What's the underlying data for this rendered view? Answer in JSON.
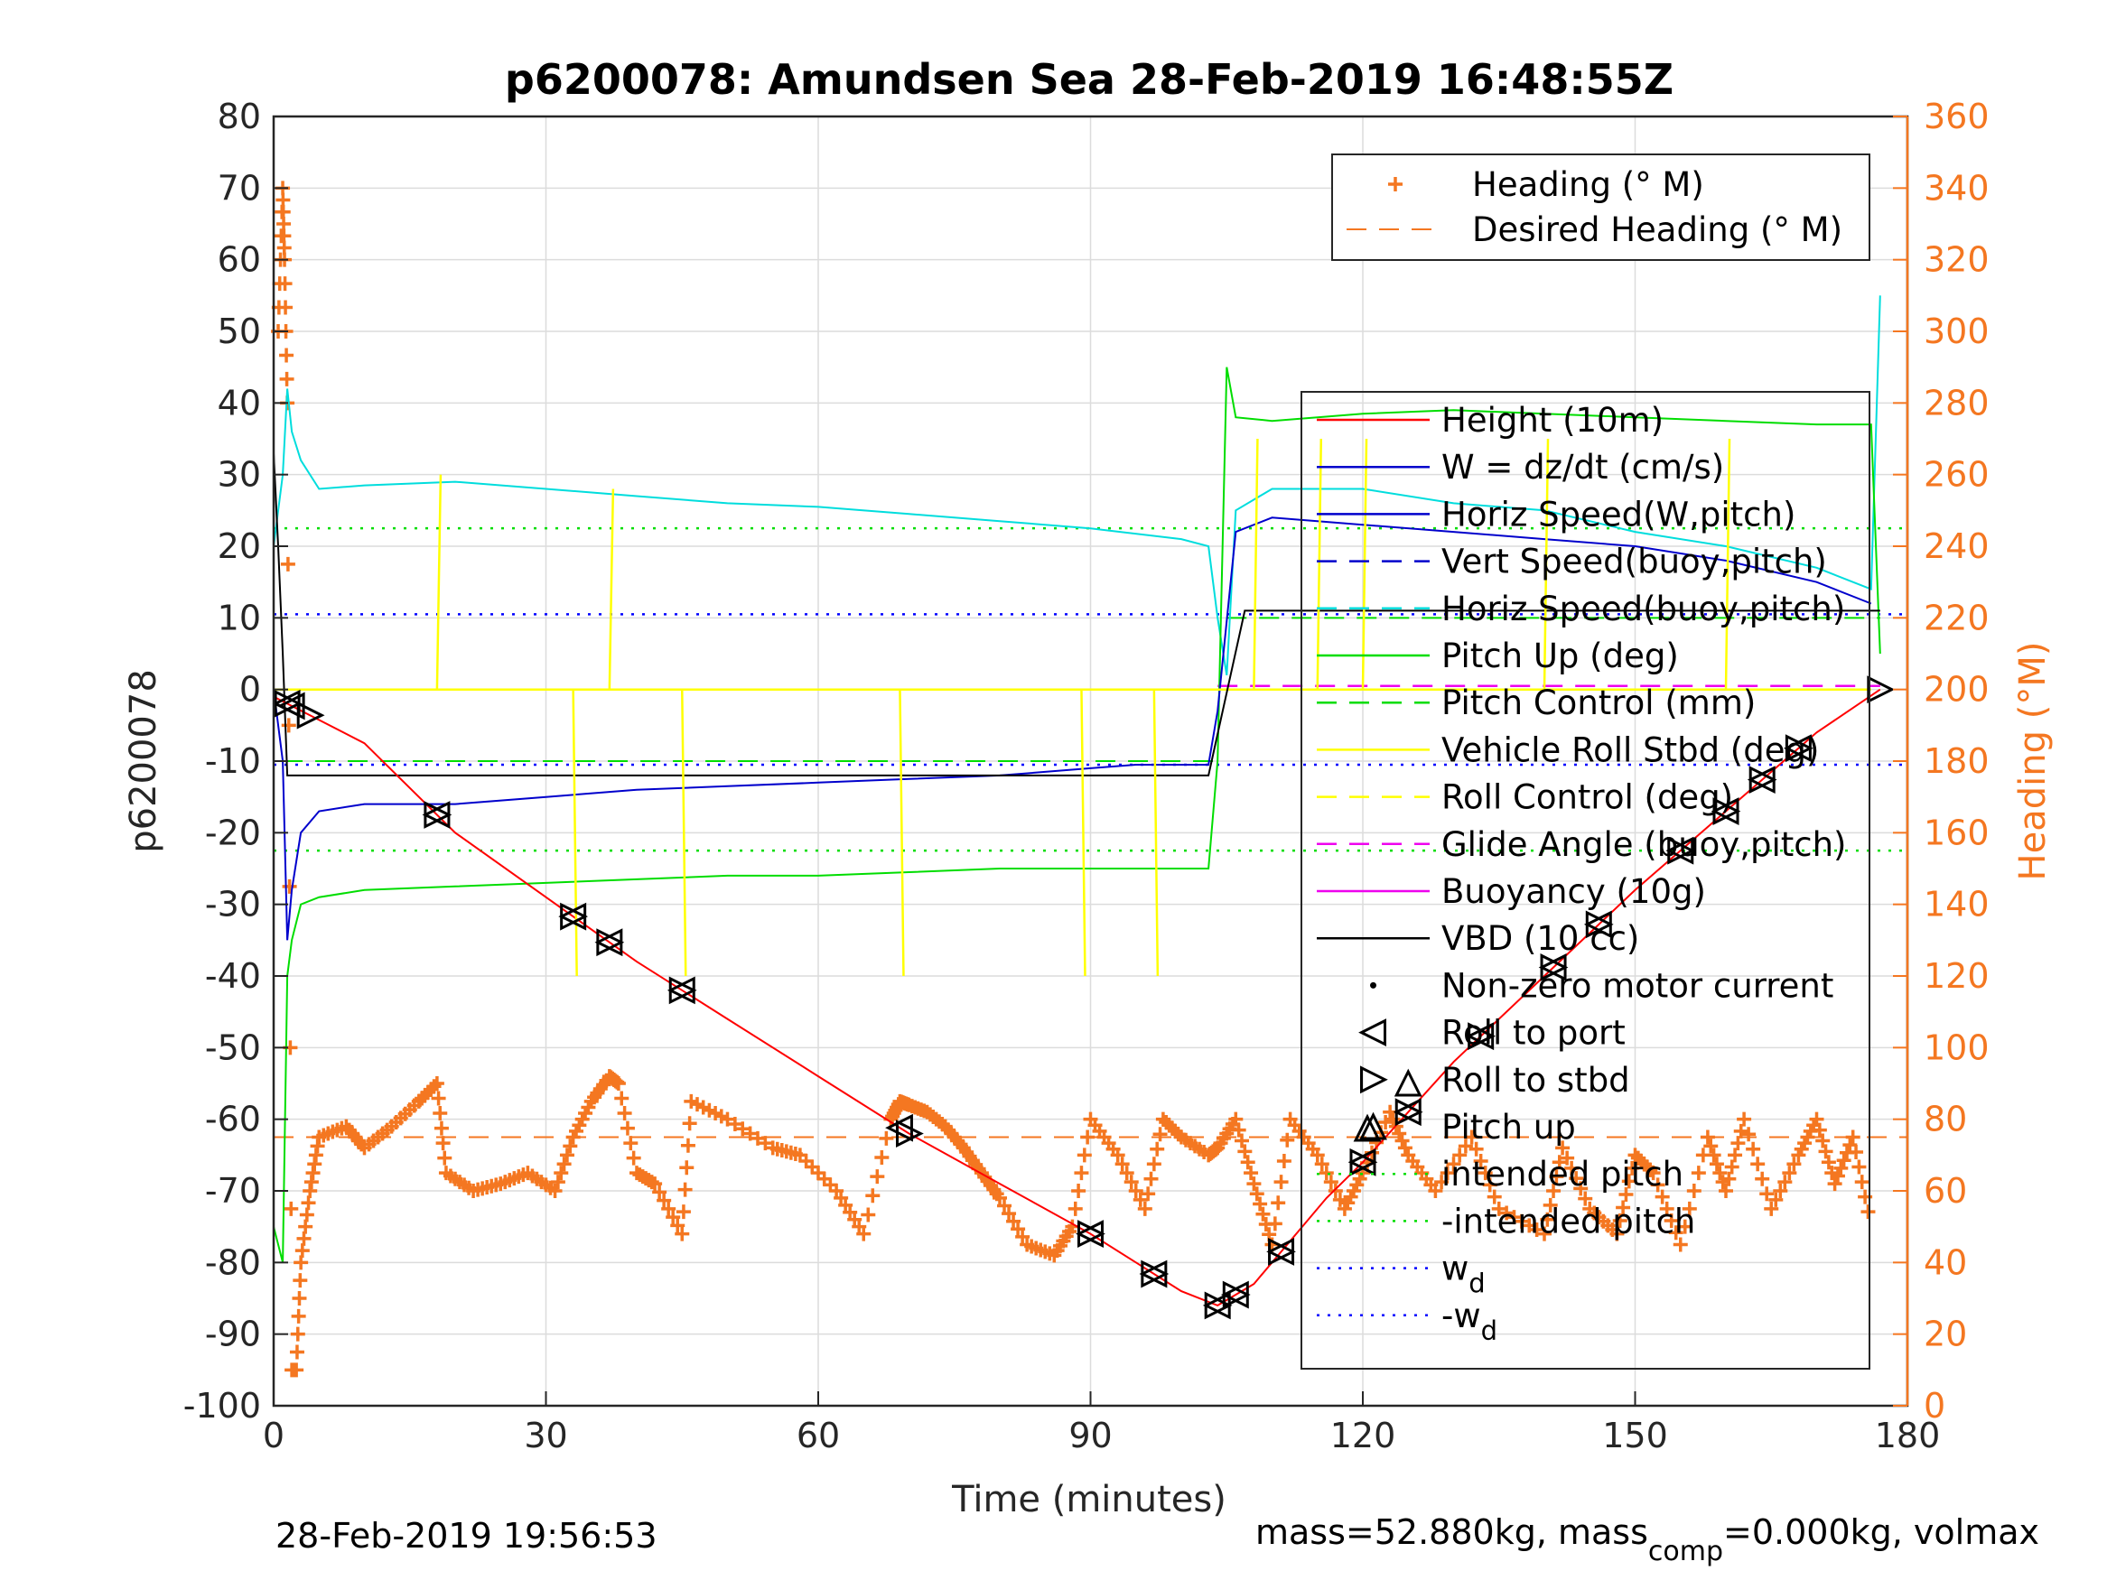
{
  "chart_data": {
    "type": "line",
    "title": "p6200078: Amundsen Sea 28-Feb-2019 16:48:55Z",
    "xlabel": "Time (minutes)",
    "ylabel": "p6200078",
    "ylabel_right": "Heading (°M)",
    "xlim": [
      0,
      180
    ],
    "ylim": [
      -100,
      80
    ],
    "ylim_right": [
      0,
      360
    ],
    "xticks": [
      "0",
      "30",
      "60",
      "90",
      "120",
      "150",
      "180"
    ],
    "yticks": [
      "80",
      "70",
      "60",
      "50",
      "40",
      "30",
      "20",
      "10",
      "0",
      "-10",
      "-20",
      "-30",
      "-40",
      "-50",
      "-60",
      "-70",
      "-80",
      "-90",
      "-100"
    ],
    "yticks_right": [
      "360",
      "340",
      "320",
      "300",
      "280",
      "260",
      "240",
      "220",
      "200",
      "180",
      "160",
      "140",
      "120",
      "100",
      "80",
      "60",
      "40",
      "20",
      "0"
    ],
    "grid": true,
    "legend_placement": "top-right",
    "colors": {
      "heading": "#F47721",
      "height": "#FF0000",
      "w": "#0000CC",
      "horiz_w": "#00DDDD",
      "pitch": "#00DD00",
      "roll": "#FFFF00",
      "glide": "#EE00EE",
      "vbd": "#000000",
      "wd": "#0000FF"
    },
    "heading_legend": [
      "Heading (° M)",
      "Desired Heading (° M)"
    ],
    "main_legend": [
      "Height (10m)",
      "W = dz/dt (cm/s)",
      "Horiz Speed(W,pitch)",
      "Vert Speed(buoy,pitch)",
      "Horiz Speed(buoy,pitch)",
      "Pitch Up (deg)",
      "Pitch Control (mm)",
      "Vehicle Roll Stbd (deg)",
      "Roll Control (deg)",
      "Glide Angle (buoy,pitch)",
      "Buoyancy (10g)",
      "VBD (10 cc)",
      "Non-zero motor current",
      "Roll to port",
      "Roll to stbd",
      "Pitch up",
      "intended pitch",
      "-intended pitch",
      "w",
      "-w"
    ],
    "legend_subscript": "d",
    "series": [
      {
        "name": "Height (10m)",
        "x": [
          0,
          10,
          20,
          30,
          40,
          50,
          60,
          70,
          80,
          90,
          95,
          100,
          104,
          108,
          112,
          116,
          120,
          125,
          130,
          140,
          150,
          160,
          170,
          177
        ],
        "y": [
          -1,
          -7.5,
          -20,
          -29,
          -38,
          -46,
          -54,
          -62,
          -69,
          -76,
          -80,
          -84,
          -86,
          -83,
          -77,
          -71,
          -66,
          -59,
          -52,
          -40,
          -28,
          -17,
          -6,
          0
        ]
      },
      {
        "name": "W = dz/dt (cm/s)",
        "x": [
          0,
          1,
          1.5,
          2,
          3,
          5,
          10,
          20,
          30,
          40,
          50,
          60,
          70,
          80,
          90,
          95,
          100,
          103,
          104,
          106,
          110,
          120,
          130,
          140,
          150,
          160,
          170,
          176
        ],
        "y": [
          0,
          -10,
          -35,
          -28,
          -20,
          -17,
          -16,
          -16,
          -15,
          -14,
          -13.5,
          -13,
          -12.5,
          -12,
          -11,
          -10.5,
          -10.5,
          -10.5,
          -3,
          22,
          24,
          23,
          22,
          21,
          20,
          18,
          15,
          12
        ]
      },
      {
        "name": "Horiz Speed(W,pitch)",
        "x": [
          0,
          1,
          1.5,
          2,
          3,
          5,
          10,
          20,
          30,
          40,
          50,
          60,
          70,
          80,
          90,
          100,
          103,
          104,
          105,
          106,
          110,
          120,
          130,
          140,
          150,
          160,
          170,
          176,
          177
        ],
        "y": [
          20,
          30,
          42,
          36,
          32,
          28,
          28.5,
          29,
          28,
          27,
          26,
          25.5,
          24.5,
          23.5,
          22.5,
          21,
          20,
          10,
          2,
          25,
          28,
          28,
          26,
          25,
          22,
          20,
          17,
          14,
          55
        ]
      },
      {
        "name": "Pitch Up (deg)",
        "x": [
          0,
          1,
          1.5,
          2,
          3,
          5,
          10,
          20,
          30,
          40,
          50,
          60,
          70,
          80,
          90,
          100,
          103,
          104,
          105,
          106,
          110,
          120,
          130,
          140,
          150,
          160,
          170,
          176,
          177
        ],
        "y": [
          -75,
          -80,
          -40,
          -35,
          -30,
          -29,
          -28,
          -27.5,
          -27,
          -26.5,
          -26,
          -26,
          -25.5,
          -25,
          -25,
          -25,
          -25,
          -10,
          45,
          38,
          37.5,
          38.5,
          39,
          38.5,
          38,
          37.5,
          37,
          37,
          5
        ]
      },
      {
        "name": "Vehicle Roll Stbd (deg)",
        "x": [
          0,
          2,
          10,
          30,
          60,
          90,
          104,
          110,
          120,
          140,
          160,
          176
        ],
        "y": [
          0,
          0,
          0,
          0,
          0,
          0,
          0,
          0,
          0,
          0,
          0,
          0
        ]
      },
      {
        "name": "VBD (10 cc)",
        "x": [
          0,
          0.5,
          1,
          1.5,
          10,
          50,
          100,
          103,
          107,
          110,
          150,
          177
        ],
        "y": [
          33,
          20,
          5,
          -12,
          -12,
          -12,
          -12,
          -12,
          11,
          11,
          11,
          11
        ]
      },
      {
        "name": "Pitch Control (mm)",
        "x": [
          1,
          104,
          105,
          177
        ],
        "y": [
          -10,
          -10,
          10,
          10
        ]
      },
      {
        "name": "intended pitch",
        "x": [
          0,
          180
        ],
        "y": [
          22.5,
          22.5
        ]
      },
      {
        "name": "-intended pitch",
        "x": [
          0,
          180
        ],
        "y": [
          -22.5,
          -22.5
        ]
      },
      {
        "name": "w",
        "x": [
          0,
          180
        ],
        "y": [
          10.5,
          10.5
        ]
      },
      {
        "name": "-w",
        "x": [
          0,
          180
        ],
        "y": [
          -10.5,
          -10.5
        ]
      },
      {
        "name": "Desired Heading (° M)",
        "x": [
          0,
          180
        ],
        "y_right": [
          75,
          75
        ]
      },
      {
        "name": "Heading (° M)",
        "x": [
          0.5,
          1,
          1.2,
          1.5,
          2,
          2.5,
          3,
          4,
          5,
          8,
          10,
          13,
          16,
          18,
          19,
          22,
          25,
          28,
          31,
          33,
          35,
          37,
          38,
          40,
          42,
          45,
          46,
          50,
          55,
          58,
          62,
          65,
          68,
          69,
          70,
          72,
          74,
          76,
          78,
          80,
          83,
          86,
          88,
          90,
          93,
          96,
          98,
          100,
          103,
          104,
          106,
          108,
          110,
          112,
          115,
          118,
          120,
          123,
          125,
          128,
          132,
          135,
          140,
          142,
          145,
          148,
          150,
          152,
          155,
          158,
          160,
          162,
          165,
          168,
          170,
          172,
          174,
          176
        ],
        "y_right": [
          300,
          340,
          320,
          280,
          10,
          10,
          40,
          60,
          75,
          78,
          72,
          78,
          85,
          90,
          65,
          60,
          62,
          65,
          60,
          75,
          85,
          92,
          90,
          65,
          62,
          48,
          85,
          80,
          72,
          70,
          60,
          48,
          80,
          85,
          84,
          82,
          78,
          72,
          65,
          58,
          45,
          42,
          50,
          80,
          70,
          55,
          80,
          75,
          70,
          72,
          80,
          62,
          45,
          80,
          70,
          55,
          65,
          82,
          70,
          60,
          75,
          55,
          48,
          72,
          55,
          48,
          70,
          65,
          45,
          75,
          60,
          80,
          55,
          70,
          80,
          62,
          75,
          50
        ]
      }
    ],
    "markers": {
      "roll_to_port_x": [
        1.5,
        2,
        18,
        33,
        37,
        45,
        69,
        90,
        97,
        104,
        106,
        111,
        120,
        125,
        133,
        141,
        146,
        155,
        160,
        164,
        168
      ],
      "roll_to_stbd_x": [
        1.5,
        4,
        18,
        33,
        37,
        45,
        70,
        90,
        97,
        104,
        106,
        111,
        120,
        125,
        133,
        141,
        146,
        155,
        160,
        164,
        168,
        177
      ],
      "pitch_up_x": [
        120.5,
        125
      ]
    }
  },
  "footer": {
    "timestamp": "28-Feb-2019 19:56:53",
    "mass_text_1": "mass=52.880kg, mass",
    "mass_sub": "comp",
    "mass_text_2": "=0.000kg, volmax"
  }
}
